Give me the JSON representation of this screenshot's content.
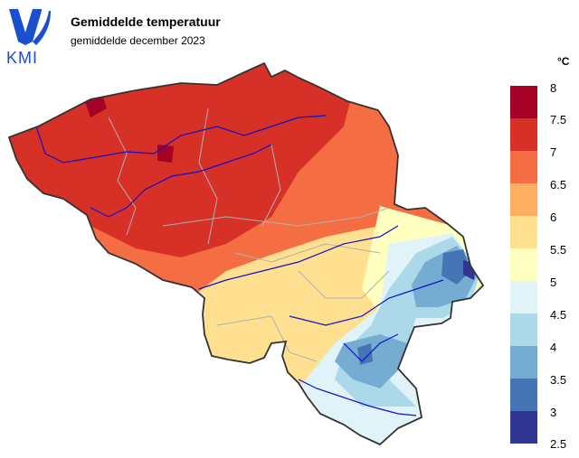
{
  "header": {
    "logo_text": "KMI",
    "title": "Gemiddelde temperatuur",
    "subtitle": "gemiddelde december 2023"
  },
  "legend": {
    "unit": "°C",
    "ticks": [
      "8",
      "7.5",
      "7",
      "6.5",
      "6",
      "5.5",
      "5",
      "4.5",
      "4",
      "3.5",
      "3",
      "2.5"
    ],
    "colors": [
      "#a50026",
      "#d73027",
      "#f46d43",
      "#fdae61",
      "#fee090",
      "#ffffbf",
      "#e0f3f8",
      "#abd9e9",
      "#74add1",
      "#4575b4",
      "#313695"
    ]
  },
  "map": {
    "region": "Belgium",
    "colors": {
      "border": "#333333",
      "rivers": "#1010cc",
      "provinces": "#b0b0b0"
    }
  }
}
